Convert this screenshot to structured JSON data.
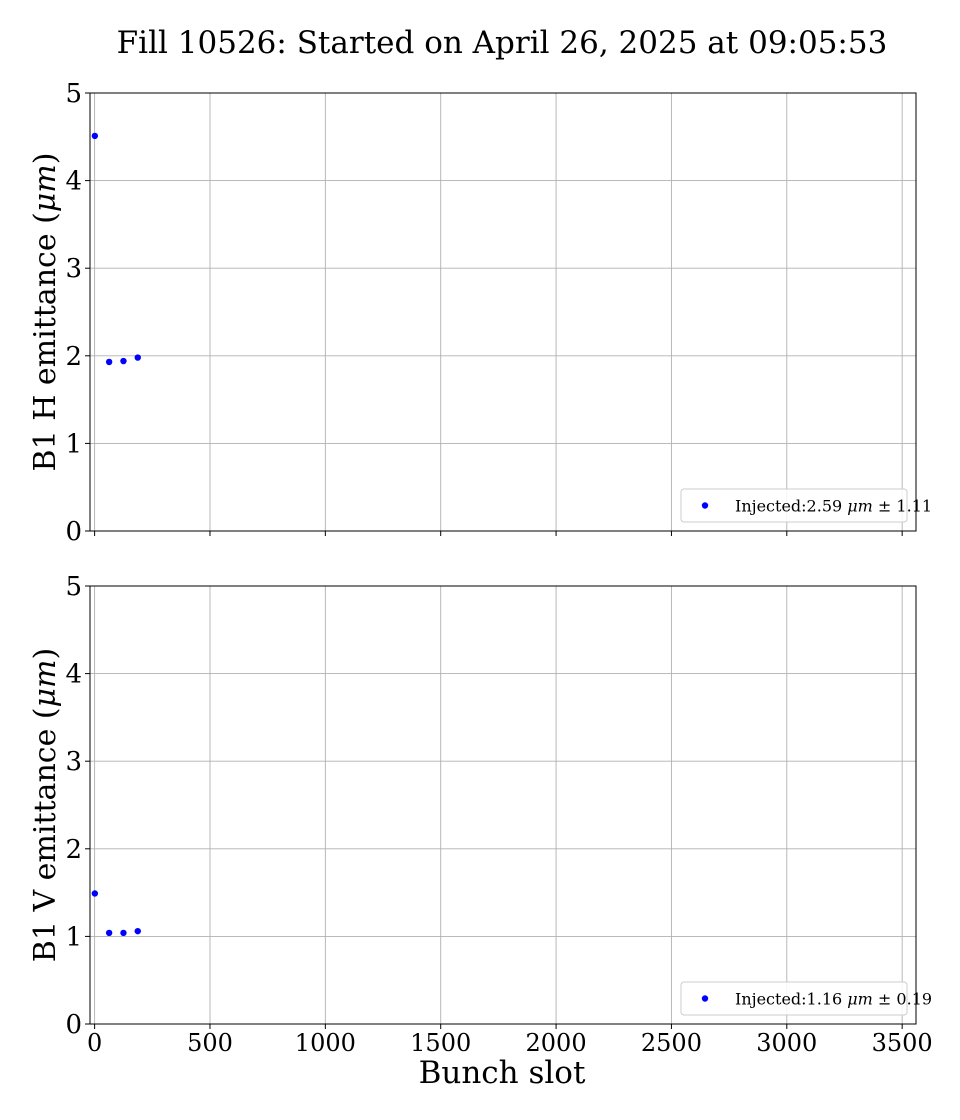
{
  "figure": {
    "title": "Fill 10526: Started on April 26, 2025 at 09:05:53",
    "xlabel": "Bunch slot"
  },
  "chart_data": [
    {
      "type": "scatter",
      "ylabel_main": "B1 H emittance (",
      "ylabel_unit": "μm",
      "ylabel_close": ")",
      "xlim": [
        -20,
        3560
      ],
      "ylim": [
        0,
        5
      ],
      "x_ticks": [
        0,
        500,
        1000,
        1500,
        2000,
        2500,
        3000,
        3500
      ],
      "y_ticks": [
        0,
        1,
        2,
        3,
        4,
        5
      ],
      "x_ticklabels_shown": false,
      "grid": true,
      "legend_position": "lower-right",
      "series": [
        {
          "legend_prefix": "Injected:2.59 ",
          "legend_unit": "μm",
          "legend_suffix": " ± 1.11",
          "color": "#0000ff",
          "points": [
            {
              "x": 1,
              "y": 4.51
            },
            {
              "x": 63,
              "y": 1.93
            },
            {
              "x": 125,
              "y": 1.94
            },
            {
              "x": 187,
              "y": 1.98
            }
          ]
        }
      ]
    },
    {
      "type": "scatter",
      "ylabel_main": "B1 V emittance (",
      "ylabel_unit": "μm",
      "ylabel_close": ")",
      "xlim": [
        -20,
        3560
      ],
      "ylim": [
        0,
        5
      ],
      "x_ticks": [
        0,
        500,
        1000,
        1500,
        2000,
        2500,
        3000,
        3500
      ],
      "y_ticks": [
        0,
        1,
        2,
        3,
        4,
        5
      ],
      "x_ticklabels_shown": true,
      "grid": true,
      "legend_position": "lower-right",
      "series": [
        {
          "legend_prefix": "Injected:1.16 ",
          "legend_unit": "μm",
          "legend_suffix": " ± 0.19",
          "color": "#0000ff",
          "points": [
            {
              "x": 1,
              "y": 1.49
            },
            {
              "x": 63,
              "y": 1.04
            },
            {
              "x": 125,
              "y": 1.04
            },
            {
              "x": 187,
              "y": 1.06
            }
          ]
        }
      ]
    }
  ]
}
